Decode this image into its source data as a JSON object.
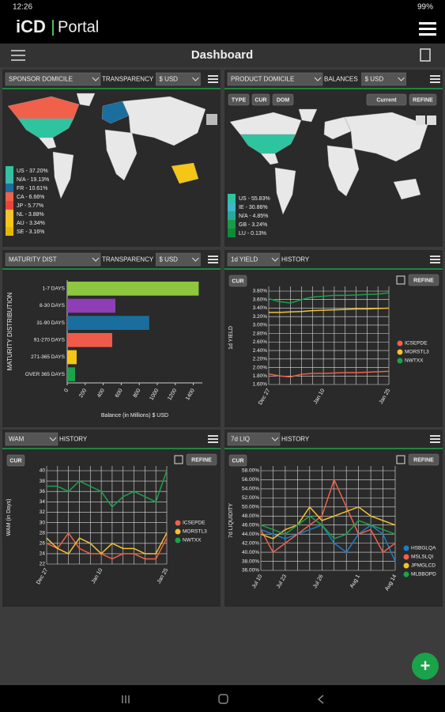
{
  "status": {
    "time": "12:26",
    "battery": "99%"
  },
  "header": {
    "logo": "iCD",
    "portal": "Portal"
  },
  "toolbar": {
    "title": "Dashboard"
  },
  "panels": [
    {
      "controls": [
        "SPONSOR DOMICILE",
        "TRANSPARENCY",
        "$ USD"
      ],
      "legend": [
        {
          "label": "US - 37.20%",
          "color": "#2ec4a0"
        },
        {
          "label": "N/A - 19.13%",
          "color": "#3fb8a8"
        },
        {
          "label": "FR - 10.61%",
          "color": "#1a6e9e"
        },
        {
          "label": "CA - 6.66%",
          "color": "#f0604a"
        },
        {
          "label": "JP - 5.77%",
          "color": "#e8463a"
        },
        {
          "label": "NL - 3.88%",
          "color": "#f2c230"
        },
        {
          "label": "AU - 3.34%",
          "color": "#f5c518"
        },
        {
          "label": "SE - 3.16%",
          "color": "#e6b800"
        }
      ]
    },
    {
      "controls": [
        "PRODUCT DOMICILE",
        "BALANCES",
        "$ USD"
      ],
      "buttons": [
        "TYPE",
        "CUR",
        "DOM",
        "Current",
        "REFINE"
      ],
      "legend": [
        {
          "label": "US - 55.83%",
          "color": "#2ec4a0"
        },
        {
          "label": "IE - 30.86%",
          "color": "#3fb8c8"
        },
        {
          "label": "N/A - 4.85%",
          "color": "#2aa89a"
        },
        {
          "label": "GB - 3.24%",
          "color": "#1a9a4a"
        },
        {
          "label": "LU - 0.13%",
          "color": "#0e8a3a"
        }
      ]
    },
    {
      "controls": [
        "MATURITY DIST",
        "TRANSPARENCY",
        "$ USD"
      ],
      "chart": {
        "type": "bar",
        "ylabel": "MATURITY DISTRIBUTION",
        "xlabel": "Balance (in Millions) $ USD",
        "categories": [
          "1-7 DAYS",
          "8-30 DAYS",
          "31-90 DAYS",
          "91-270 DAYS",
          "271-365 DAYS",
          "OVER 365 DAYS"
        ],
        "values": [
          1460,
          535,
          910,
          500,
          105,
          88
        ],
        "colors": [
          "#8dc63f",
          "#8e3fb5",
          "#1a6e9e",
          "#f05a4a",
          "#f5c518",
          "#1aa34a"
        ],
        "xlim": [
          0,
          1500
        ],
        "xticks": [
          0,
          200,
          400,
          600,
          800,
          1000,
          1200,
          1400
        ]
      }
    },
    {
      "controls": [
        "1d YIELD",
        "HISTORY"
      ],
      "buttons": [
        "CUR",
        "REFINE"
      ],
      "chart": {
        "type": "line",
        "ylabel": "1d YIELD",
        "categories": [
          "Dec 27",
          null,
          null,
          null,
          null,
          "Jan 10",
          null,
          null,
          null,
          null,
          null,
          "Jan 25"
        ],
        "ylim": [
          1.6,
          3.8
        ],
        "yticks": [
          {
            "value": 1.6,
            "label": "1.60%"
          },
          {
            "value": 1.8,
            "label": "1.80%"
          },
          {
            "value": 2.0,
            "label": "2.00%"
          },
          {
            "value": 2.2,
            "label": "2.20%"
          },
          {
            "value": 2.4,
            "label": "2.40%"
          },
          {
            "value": 2.6,
            "label": "2.60%"
          },
          {
            "value": 2.8,
            "label": "2.80%"
          },
          {
            "value": 3.0,
            "label": "3.00%"
          },
          {
            "value": 3.2,
            "label": "3.20%"
          },
          {
            "value": 3.4,
            "label": "3.40%"
          },
          {
            "value": 3.6,
            "label": "3.60%"
          },
          {
            "value": 3.8,
            "label": "3.80%"
          }
        ],
        "series": [
          {
            "name": "ICSEPDE",
            "color": "#f0604a",
            "values": [
              1.85,
              1.8,
              1.78,
              1.84,
              1.86,
              1.86,
              1.87,
              1.88,
              1.88,
              1.89,
              1.9,
              1.91
            ]
          },
          {
            "name": "MORSTL3",
            "color": "#f2c230",
            "values": [
              3.3,
              3.3,
              3.31,
              3.32,
              3.34,
              3.35,
              3.36,
              3.37,
              3.38,
              3.38,
              3.39,
              3.4
            ]
          },
          {
            "name": "NWTXX",
            "color": "#1aa34a",
            "values": [
              3.62,
              3.55,
              3.52,
              3.6,
              3.66,
              3.68,
              3.7,
              3.7,
              3.71,
              3.72,
              3.73,
              3.76
            ]
          }
        ]
      }
    },
    {
      "controls": [
        "WAM",
        "HISTORY"
      ],
      "buttons": [
        "CUR",
        "REFINE"
      ],
      "chart": {
        "type": "line",
        "ylabel": "WAM (in Days)",
        "categories": [
          "Dec 27",
          null,
          null,
          null,
          null,
          "Jan 10",
          null,
          null,
          null,
          null,
          null,
          "Jan 25"
        ],
        "ylim": [
          22,
          40
        ],
        "yticks": [
          22,
          24,
          26,
          28,
          30,
          32,
          34,
          36,
          38,
          40
        ],
        "series": [
          {
            "name": "ICSEPDE",
            "color": "#f0604a",
            "values": [
              26,
              25,
              28,
              25,
              24,
              24,
              23,
              24,
              24,
              23,
              23,
              27
            ]
          },
          {
            "name": "MORSTL3",
            "color": "#f2c230",
            "values": [
              27,
              25,
              24,
              27,
              26,
              24,
              26,
              25,
              25,
              24,
              24,
              28
            ]
          },
          {
            "name": "NWTXX",
            "color": "#1aa34a",
            "values": [
              37,
              37,
              36,
              38,
              37,
              36,
              33,
              35,
              36,
              35,
              34,
              40
            ]
          }
        ]
      }
    },
    {
      "controls": [
        "7d LIQ",
        "HISTORY"
      ],
      "buttons": [
        "CUR",
        "REFINE"
      ],
      "chart": {
        "type": "line",
        "ylabel": "7d LIQUIDITY",
        "categories": [
          "Jul 10",
          null,
          "Jul 23",
          null,
          null,
          "Jul 26",
          null,
          null,
          "Aug 1",
          null,
          null,
          "Aug 14"
        ],
        "ylim": [
          36,
          58
        ],
        "yticks": [
          {
            "value": 36,
            "label": "36.00%"
          },
          {
            "value": 38,
            "label": "38.00%"
          },
          {
            "value": 40,
            "label": "40.00%"
          },
          {
            "value": 42,
            "label": "42.00%"
          },
          {
            "value": 44,
            "label": "44.00%"
          },
          {
            "value": 46,
            "label": "46.00%"
          },
          {
            "value": 48,
            "label": "48.00%"
          },
          {
            "value": 50,
            "label": "50.00%"
          },
          {
            "value": 52,
            "label": "52.00%"
          },
          {
            "value": 54,
            "label": "54.00%"
          },
          {
            "value": 56,
            "label": "56.00%"
          },
          {
            "value": 58,
            "label": "58.00%"
          }
        ],
        "series": [
          {
            "name": "HSBGLQA",
            "color": "#1a7ec8",
            "values": [
              45,
              44,
              43,
              44,
              45,
              46,
              42,
              40,
              44,
              46,
              44,
              38
            ]
          },
          {
            "name": "MSLSLQI",
            "color": "#f0604a",
            "values": [
              45,
              40,
              42,
              44,
              46,
              48,
              56,
              50,
              44,
              45,
              40,
              42
            ]
          },
          {
            "name": "JPMGLCD",
            "color": "#f2c230",
            "values": [
              44,
              43,
              45,
              46,
              50,
              47,
              48,
              49,
              50,
              48,
              47,
              46
            ]
          },
          {
            "name": "MLBBOPD",
            "color": "#1aa34a",
            "values": [
              46,
              45,
              44,
              46,
              48,
              46,
              43,
              44,
              47,
              46,
              45,
              44
            ]
          }
        ]
      }
    }
  ]
}
